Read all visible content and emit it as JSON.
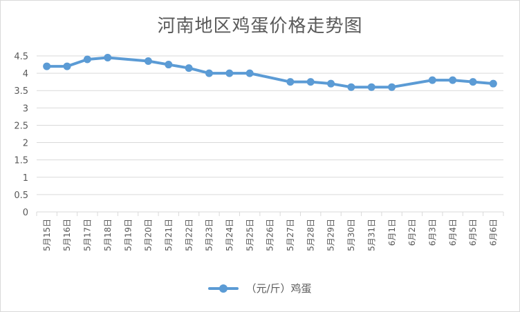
{
  "chart_data": {
    "type": "line",
    "title": "河南地区鸡蛋价格走势图",
    "categories": [
      "5月15日",
      "5月16日",
      "5月17日",
      "5月18日",
      "5月19日",
      "5月20日",
      "5月21日",
      "5月22日",
      "5月23日",
      "5月24日",
      "5月25日",
      "5月26日",
      "5月27日",
      "5月28日",
      "5月29日",
      "5月30日",
      "5月31日",
      "6月1日",
      "6月2日",
      "6月3日",
      "6月4日",
      "6月5日",
      "6月6日"
    ],
    "series": [
      {
        "name": "（元/斤）鸡蛋",
        "color": "#5b9bd5",
        "values": [
          4.2,
          4.2,
          4.4,
          4.45,
          null,
          4.35,
          4.25,
          4.15,
          4.0,
          4.0,
          4.0,
          null,
          3.75,
          3.75,
          3.7,
          3.6,
          3.6,
          3.6,
          null,
          3.8,
          3.8,
          3.75,
          3.7
        ]
      }
    ],
    "ylim": [
      0,
      4.5
    ],
    "yticks": [
      "0",
      "0.5",
      "1",
      "1.5",
      "2",
      "2.5",
      "3",
      "3.5",
      "4",
      "4.5"
    ],
    "grid": true,
    "legend": "bottom"
  }
}
